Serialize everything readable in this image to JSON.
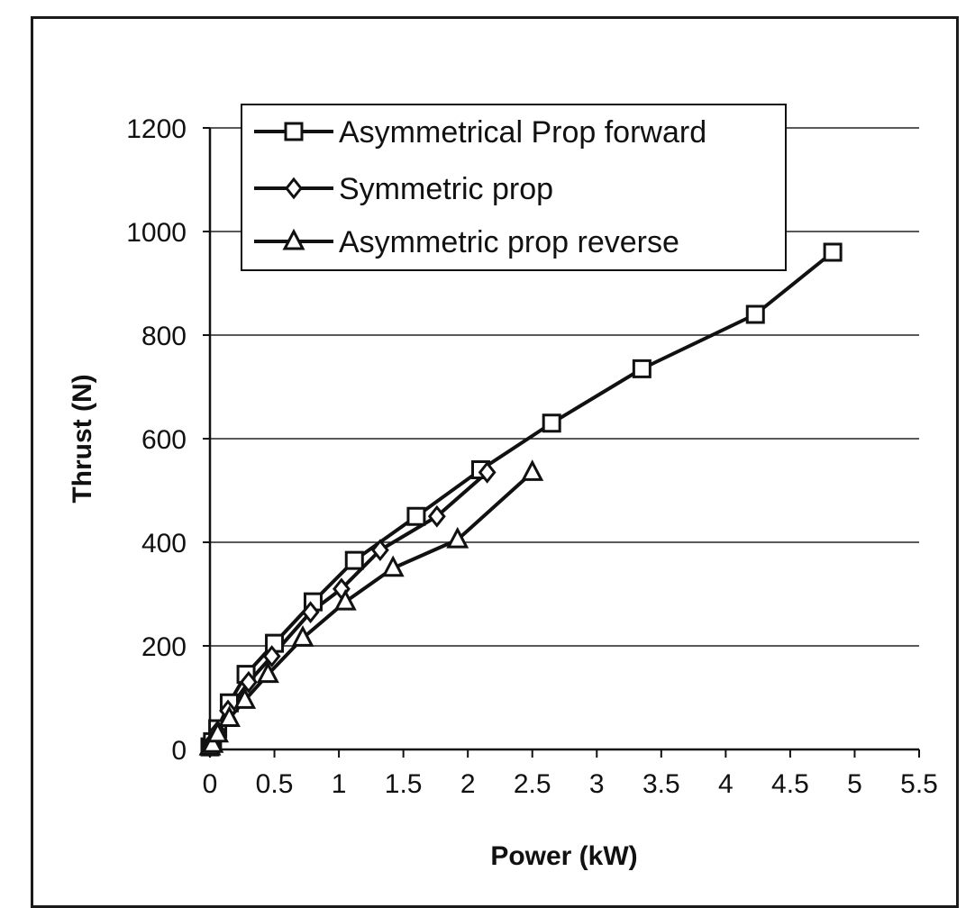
{
  "chart_data": {
    "type": "line",
    "title": "",
    "xlabel": "Power (kW)",
    "ylabel": "Thrust (N)",
    "xlim": [
      0,
      5.5
    ],
    "ylim": [
      0,
      1200
    ],
    "x_ticks": [
      "0",
      "0.5",
      "1",
      "1.5",
      "2",
      "2.5",
      "3",
      "3.5",
      "4",
      "4.5",
      "5",
      "5.5"
    ],
    "y_ticks": [
      "0",
      "200",
      "400",
      "600",
      "800",
      "1000",
      "1200"
    ],
    "grid": "horizontal",
    "legend_position": "top-left",
    "series": [
      {
        "name": "Asymmetrical Prop forward",
        "marker": "square",
        "x": [
          0.0,
          0.02,
          0.06,
          0.15,
          0.28,
          0.5,
          0.8,
          1.12,
          1.6,
          2.1,
          2.65,
          3.35,
          4.23,
          4.83
        ],
        "y": [
          5,
          15,
          40,
          90,
          145,
          205,
          285,
          365,
          450,
          540,
          630,
          735,
          840,
          960
        ]
      },
      {
        "name": "Symmetric prop",
        "marker": "diamond",
        "x": [
          0.0,
          0.02,
          0.06,
          0.14,
          0.3,
          0.48,
          0.78,
          1.02,
          1.32,
          1.76,
          2.15
        ],
        "y": [
          5,
          15,
          35,
          75,
          130,
          180,
          265,
          310,
          385,
          450,
          535
        ]
      },
      {
        "name": "Asymmetric prop reverse",
        "marker": "triangle",
        "x": [
          0.0,
          0.02,
          0.06,
          0.15,
          0.27,
          0.45,
          0.72,
          1.05,
          1.42,
          1.92,
          2.5
        ],
        "y": [
          5,
          10,
          30,
          60,
          95,
          145,
          215,
          285,
          350,
          405,
          535
        ]
      }
    ]
  }
}
